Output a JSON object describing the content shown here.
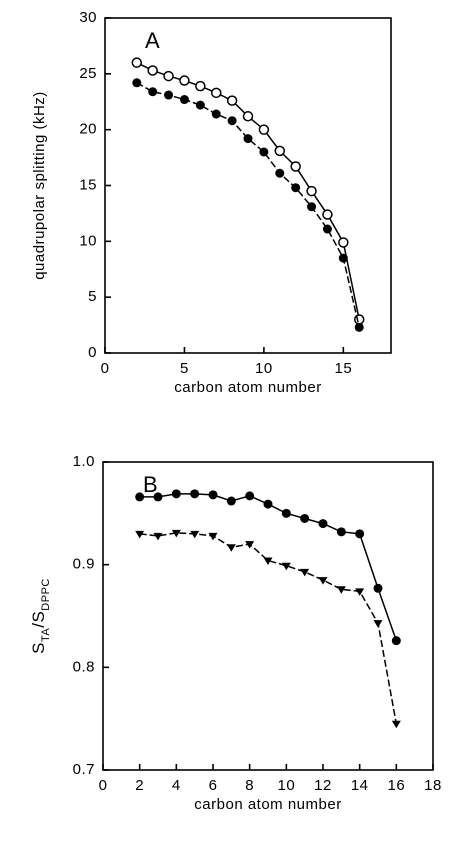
{
  "chart_data": [
    {
      "type": "line",
      "annotation": "A",
      "xlabel": "carbon atom number",
      "ylabel": "quadrupolar splitting (kHz)",
      "xlim": [
        0,
        18
      ],
      "ylim": [
        0,
        30
      ],
      "xticks": [
        0,
        5,
        10,
        15
      ],
      "yticks": [
        0,
        5,
        10,
        15,
        20,
        25,
        30
      ],
      "x": [
        2,
        3,
        4,
        5,
        6,
        7,
        8,
        9,
        10,
        11,
        12,
        13,
        14,
        15,
        16
      ],
      "series": [
        {
          "color": "#000000",
          "marker": "open-circle",
          "dashed": false,
          "values": [
            26.0,
            25.3,
            24.8,
            24.4,
            23.9,
            23.3,
            22.6,
            21.2,
            20.0,
            18.1,
            16.7,
            14.5,
            12.4,
            9.9,
            3.0
          ]
        },
        {
          "color": "#000000",
          "marker": "filled-circle",
          "dashed": true,
          "values": [
            24.2,
            23.4,
            23.1,
            22.7,
            22.2,
            21.4,
            20.8,
            19.2,
            18.0,
            16.1,
            14.8,
            13.1,
            11.1,
            8.5,
            2.3
          ]
        }
      ]
    },
    {
      "type": "line",
      "annotation": "B",
      "xlabel": "carbon atom number",
      "ylabel_parts": [
        {
          "text": "S",
          "sub": false
        },
        {
          "text": "TA",
          "sub": true
        },
        {
          "text": "/S",
          "sub": false
        },
        {
          "text": "DPPC",
          "sub": true
        }
      ],
      "xlim": [
        0,
        18
      ],
      "ylim": [
        0.7,
        1.0
      ],
      "xticks": [
        0,
        2,
        4,
        6,
        8,
        10,
        12,
        14,
        16,
        18
      ],
      "yticks": [
        0.7,
        0.8,
        0.9,
        {
          "value": 1,
          "label": "1.0"
        }
      ],
      "x": [
        2,
        3,
        4,
        5,
        6,
        7,
        8,
        9,
        10,
        11,
        12,
        13,
        14,
        15,
        16
      ],
      "series": [
        {
          "color": "#000000",
          "marker": "filled-circle",
          "dashed": false,
          "values": [
            0.966,
            0.966,
            0.969,
            0.969,
            0.968,
            0.962,
            0.967,
            0.959,
            0.95,
            0.945,
            0.94,
            0.932,
            0.93,
            0.877,
            0.826
          ]
        },
        {
          "color": "#000000",
          "marker": "filled-triangle",
          "dashed": true,
          "values": [
            0.93,
            0.928,
            0.931,
            0.93,
            0.928,
            0.917,
            0.92,
            0.904,
            0.899,
            0.893,
            0.885,
            0.876,
            0.874,
            0.843,
            0.745
          ]
        }
      ]
    }
  ]
}
